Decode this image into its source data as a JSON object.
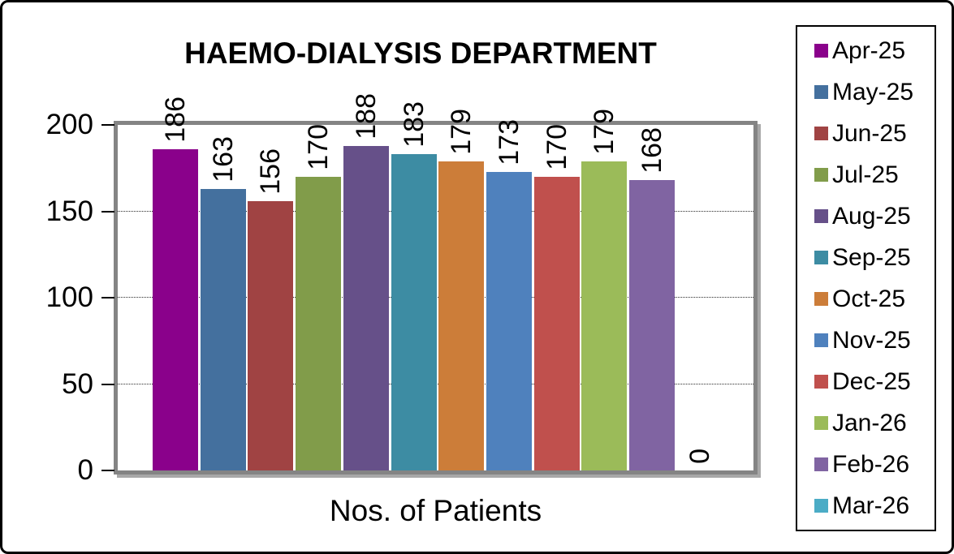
{
  "chart_data": {
    "type": "bar",
    "title": "HAEMO-DIALYSIS DEPARTMENT",
    "xlabel": "Nos. of Patients",
    "ylabel": "",
    "ylim": [
      0,
      200
    ],
    "yticks": [
      0,
      50,
      100,
      150,
      200
    ],
    "gridlines": [
      50,
      100,
      150
    ],
    "grid": "horizontal-dotted",
    "legend_position": "right",
    "data_label_rotation": 90,
    "categories": [
      "Apr-25",
      "May-25",
      "Jun-25",
      "Jul-25",
      "Aug-25",
      "Sep-25",
      "Oct-25",
      "Nov-25",
      "Dec-25",
      "Jan-26",
      "Feb-26",
      "Mar-26"
    ],
    "values": [
      186,
      163,
      156,
      170,
      188,
      183,
      179,
      173,
      170,
      179,
      168,
      0
    ],
    "colors": [
      "#8A018B",
      "#44709E",
      "#A04343",
      "#819C4A",
      "#665089",
      "#3D8CA3",
      "#CC7D39",
      "#4F81BD",
      "#C0504D",
      "#9BBB59",
      "#8064A2",
      "#4BACC6"
    ],
    "axis_border_color": "#848484",
    "tick_color": "#000000",
    "background": "#ffffff",
    "frame_border_color": "#000000"
  }
}
